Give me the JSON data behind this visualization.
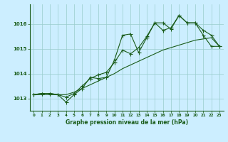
{
  "title": "Graphe pression niveau de la mer (hPa)",
  "bg_color": "#cceeff",
  "line_color": "#1a5c1a",
  "grid_color": "#99cccc",
  "xlim": [
    -0.5,
    23.5
  ],
  "ylim": [
    1012.5,
    1016.8
  ],
  "xticks": [
    0,
    1,
    2,
    3,
    4,
    5,
    6,
    7,
    8,
    9,
    10,
    11,
    12,
    13,
    14,
    15,
    16,
    17,
    18,
    19,
    20,
    21,
    22,
    23
  ],
  "yticks": [
    1013,
    1014,
    1015,
    1016
  ],
  "series1_x": [
    0,
    1,
    2,
    3,
    4,
    5,
    6,
    7,
    8,
    9,
    10,
    11,
    12,
    13,
    14,
    15,
    16,
    17,
    18,
    19,
    20,
    21,
    22,
    23
  ],
  "series1_y": [
    1013.15,
    1013.2,
    1013.2,
    1013.15,
    1012.85,
    1013.15,
    1013.4,
    1013.85,
    1013.8,
    1013.85,
    1014.55,
    1015.55,
    1015.6,
    1014.85,
    1015.45,
    1016.05,
    1016.05,
    1015.8,
    1016.35,
    1016.05,
    1016.05,
    1015.75,
    1015.55,
    1015.1
  ],
  "series2_x": [
    0,
    1,
    2,
    3,
    4,
    5,
    6,
    7,
    8,
    9,
    10,
    11,
    12,
    13,
    14,
    15,
    16,
    17,
    18,
    19,
    20,
    21,
    22,
    23
  ],
  "series2_y": [
    1013.15,
    1013.2,
    1013.2,
    1013.15,
    1013.05,
    1013.2,
    1013.5,
    1013.8,
    1013.95,
    1014.05,
    1014.45,
    1014.95,
    1014.8,
    1015.05,
    1015.5,
    1016.05,
    1015.75,
    1015.85,
    1016.35,
    1016.05,
    1016.05,
    1015.55,
    1015.1,
    1015.1
  ],
  "series3_x": [
    0,
    1,
    2,
    3,
    4,
    5,
    6,
    7,
    8,
    9,
    10,
    11,
    12,
    13,
    14,
    15,
    16,
    17,
    18,
    19,
    20,
    21,
    22,
    23
  ],
  "series3_y": [
    1013.15,
    1013.15,
    1013.15,
    1013.15,
    1013.15,
    1013.25,
    1013.4,
    1013.55,
    1013.7,
    1013.85,
    1014.0,
    1014.2,
    1014.35,
    1014.5,
    1014.65,
    1014.8,
    1014.95,
    1015.05,
    1015.15,
    1015.25,
    1015.35,
    1015.4,
    1015.45,
    1015.1
  ]
}
